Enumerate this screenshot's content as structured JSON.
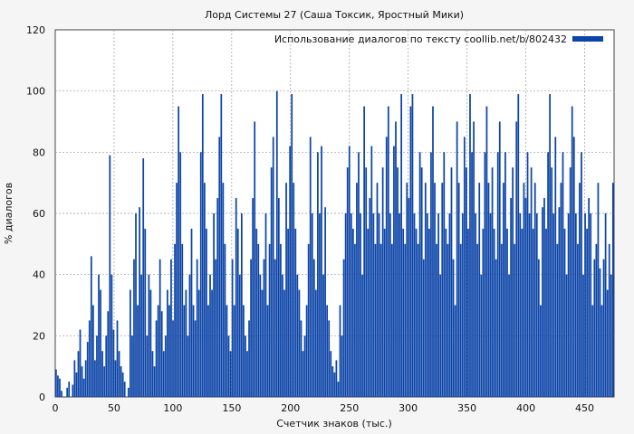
{
  "chart_data": {
    "type": "bar",
    "title": "Лорд Системы 27 (Саша Токсик, Яростный Мики)",
    "xlabel": "Счетчик знаков (тыс.)",
    "ylabel": "% диалогов",
    "xlim": [
      0,
      475
    ],
    "ylim": [
      0,
      120
    ],
    "xticks": [
      0,
      50,
      100,
      150,
      200,
      250,
      300,
      350,
      400,
      450
    ],
    "yticks": [
      0,
      20,
      40,
      60,
      80,
      100,
      120
    ],
    "grid": true,
    "legend_position": "top-right",
    "colors": {
      "series": "#0c44a8"
    },
    "series": [
      {
        "name": "Использование диалогов по тексту coollib.net/b/802432",
        "values": [
          9,
          7,
          6,
          2,
          0,
          0,
          3,
          5,
          0,
          4,
          12,
          8,
          15,
          22,
          10,
          6,
          12,
          18,
          25,
          46,
          30,
          12,
          20,
          40,
          35,
          15,
          10,
          20,
          28,
          79,
          40,
          22,
          12,
          25,
          15,
          10,
          8,
          5,
          0,
          3,
          35,
          20,
          45,
          60,
          30,
          62,
          40,
          78,
          55,
          20,
          40,
          35,
          15,
          10,
          25,
          30,
          45,
          28,
          15,
          20,
          35,
          30,
          45,
          25,
          50,
          70,
          95,
          80,
          50,
          30,
          35,
          20,
          40,
          55,
          30,
          25,
          45,
          35,
          80,
          99,
          70,
          55,
          30,
          40,
          35,
          60,
          45,
          65,
          85,
          99,
          70,
          50,
          30,
          20,
          15,
          45,
          30,
          65,
          55,
          40,
          60,
          30,
          20,
          15,
          25,
          45,
          65,
          90,
          55,
          50,
          40,
          35,
          45,
          60,
          30,
          50,
          75,
          85,
          45,
          100,
          65,
          50,
          40,
          35,
          70,
          55,
          82,
          99,
          70,
          55,
          40,
          35,
          25,
          15,
          20,
          30,
          50,
          85,
          60,
          45,
          35,
          80,
          60,
          82,
          40,
          62,
          30,
          25,
          15,
          10,
          8,
          12,
          5,
          30,
          20,
          45,
          60,
          75,
          82,
          60,
          55,
          50,
          70,
          80,
          60,
          40,
          95,
          75,
          55,
          65,
          82,
          60,
          50,
          70,
          60,
          50,
          75,
          55,
          85,
          95,
          60,
          50,
          82,
          90,
          75,
          60,
          99,
          55,
          50,
          70,
          65,
          95,
          99,
          60,
          55,
          50,
          80,
          75,
          45,
          70,
          60,
          55,
          80,
          95,
          70,
          50,
          60,
          40,
          70,
          80,
          55,
          50,
          60,
          75,
          45,
          30,
          90,
          70,
          50,
          60,
          85,
          75,
          55,
          99,
          80,
          90,
          60,
          50,
          70,
          40,
          55,
          80,
          95,
          70,
          60,
          75,
          55,
          45,
          80,
          90,
          50,
          70,
          80,
          55,
          40,
          65,
          75,
          50,
          90,
          99,
          60,
          55,
          70,
          65,
          80,
          60,
          75,
          55,
          70,
          60,
          45,
          30,
          62,
          65,
          55,
          80,
          99,
          75,
          60,
          85,
          50,
          62,
          70,
          80,
          55,
          40,
          60,
          75,
          95,
          85,
          60,
          50,
          70,
          80,
          40,
          60,
          55,
          65,
          60,
          30,
          45,
          50,
          70,
          42,
          30,
          45,
          60,
          35,
          50,
          40,
          70
        ]
      }
    ]
  }
}
